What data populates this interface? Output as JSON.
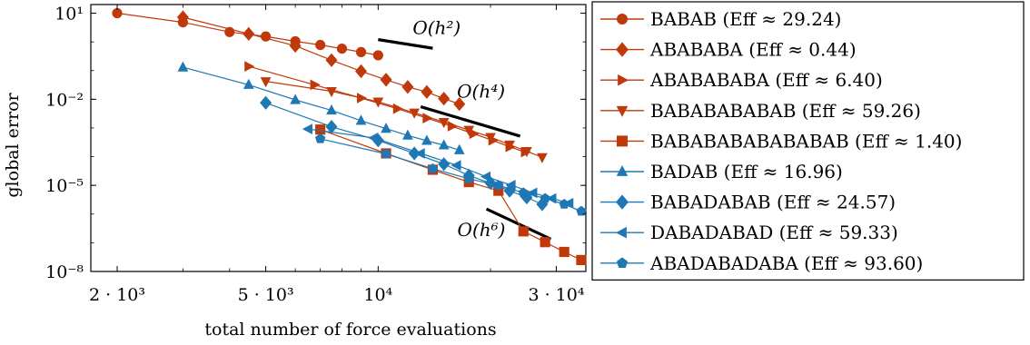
{
  "chart_data": {
    "type": "line",
    "xlabel": "total number of force evaluations",
    "ylabel": "global error",
    "xscale": "log",
    "yscale": "log",
    "xlim": [
      1700,
      36000
    ],
    "ylim": [
      1e-08,
      20
    ],
    "x_ticks": [
      {
        "value": 2000,
        "label": "2 · 10³"
      },
      {
        "value": 5000,
        "label": "5 · 10³"
      },
      {
        "value": 10000,
        "label": "10⁴"
      },
      {
        "value": 30000,
        "label": "3 · 10⁴"
      }
    ],
    "y_ticks": [
      {
        "value": 10,
        "label": "10¹"
      },
      {
        "value": 0.01,
        "label": "10⁻²"
      },
      {
        "value": 1e-05,
        "label": "10⁻⁵"
      },
      {
        "value": 1e-08,
        "label": "10⁻⁸"
      }
    ],
    "grid": false,
    "legend_position": "right, outside plot",
    "series": [
      {
        "name": "BABAB (Eff ≈ 29.24)",
        "color": "#c0390b",
        "marker": "circle",
        "x": [
          2000,
          3000,
          4000,
          5000,
          6000,
          7000,
          8000,
          9000,
          10000
        ],
        "y": [
          10.0,
          4.8,
          2.2,
          1.55,
          1.05,
          0.78,
          0.58,
          0.44,
          0.34
        ]
      },
      {
        "name": "ABABABA (Eff ≈ 0.44)",
        "color": "#c0390b",
        "marker": "diamond",
        "x": [
          3000,
          4500,
          6000,
          7500,
          9000,
          10500,
          12000,
          13500,
          15000,
          16500
        ],
        "y": [
          7.2,
          1.9,
          0.73,
          0.23,
          0.095,
          0.048,
          0.027,
          0.018,
          0.0105,
          0.0068
        ]
      },
      {
        "name": "ABABABABA (Eff ≈ 6.40)",
        "color": "#c0390b",
        "marker": "triangle-right",
        "x": [
          4500,
          6750,
          9000,
          11250,
          13500,
          15750,
          18000,
          20250,
          22500,
          24750
        ],
        "y": [
          0.14,
          0.032,
          0.011,
          0.0047,
          0.0022,
          0.00115,
          0.00063,
          0.00037,
          0.00022,
          0.000145
        ]
      },
      {
        "name": "BABABABABAB (Eff ≈ 59.26)",
        "color": "#c0390b",
        "marker": "triangle-down",
        "x": [
          5000,
          7500,
          10000,
          12500,
          15000,
          17500,
          20000,
          22500,
          25000,
          27500
        ],
        "y": [
          0.042,
          0.019,
          0.0082,
          0.0034,
          0.0016,
          0.00085,
          0.00048,
          0.00026,
          0.000155,
          9.5e-05
        ]
      },
      {
        "name": "BABABABABABABAB (Eff ≈ 1.40)",
        "color": "#c0390b",
        "marker": "square",
        "x": [
          7000,
          10500,
          14000,
          17500,
          21000,
          24500,
          28000,
          31500,
          35000
        ],
        "y": [
          0.00088,
          0.00013,
          3.5e-05,
          1.3e-05,
          6.5e-06,
          2.5e-07,
          1.05e-07,
          4.8e-08,
          2.5e-08
        ]
      },
      {
        "name": "BADAB (Eff ≈ 16.96)",
        "color": "#1f78b4",
        "marker": "triangle-up",
        "x": [
          3000,
          4500,
          6000,
          7500,
          9000,
          10500,
          12000,
          13500,
          15000,
          16500
        ],
        "y": [
          0.13,
          0.032,
          0.0095,
          0.0041,
          0.0018,
          0.00095,
          0.00055,
          0.00036,
          0.00025,
          0.00017
        ]
      },
      {
        "name": "BABADABAB (Eff ≈ 24.57)",
        "color": "#1f78b4",
        "marker": "diamond",
        "x": [
          5000,
          7500,
          10000,
          12500,
          15000,
          17500,
          20000,
          22500,
          25000,
          27500
        ],
        "y": [
          0.0075,
          0.0011,
          0.00037,
          0.00013,
          5.5e-05,
          2.2e-05,
          1.2e-05,
          6.5e-06,
          3.8e-06,
          2.2e-06
        ]
      },
      {
        "name": "DABADABAD (Eff ≈ 59.33)",
        "color": "#1f78b4",
        "marker": "triangle-left",
        "x": [
          6500,
          9750,
          13000,
          16250,
          19500,
          22750,
          26000,
          29250,
          32500
        ],
        "y": [
          0.00092,
          0.00045,
          0.00013,
          5e-05,
          2e-05,
          1.02e-05,
          5.5e-06,
          3.5e-06,
          2.4e-06
        ]
      },
      {
        "name": "ABADABADABA (Eff ≈ 93.60)",
        "color": "#1f78b4",
        "marker": "pentagon",
        "x": [
          7000,
          10500,
          14000,
          17500,
          21000,
          24500,
          28000,
          31500,
          35000
        ],
        "y": [
          0.00042,
          0.000125,
          3.8e-05,
          1.7e-05,
          1e-05,
          5.5e-06,
          3.5e-06,
          2.2e-06,
          1.25e-06
        ]
      }
    ],
    "annotations": [
      {
        "label": "O(h²)",
        "order": 2,
        "x": [
          10000,
          14000
        ],
        "y": [
          1.2,
          0.6
        ]
      },
      {
        "label": "O(h⁴)",
        "order": 4,
        "x": [
          13000,
          24000
        ],
        "y": [
          0.0055,
          0.00052
        ]
      },
      {
        "label": "O(h⁶)",
        "order": 6,
        "x": [
          19500,
          29000
        ],
        "y": [
          1.5e-06,
          1.35e-07
        ]
      }
    ]
  }
}
